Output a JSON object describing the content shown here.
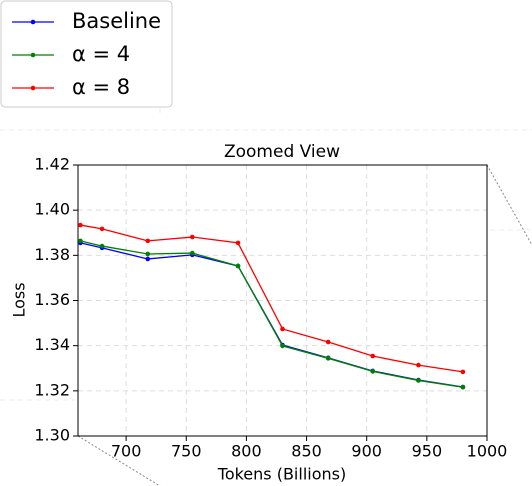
{
  "chart_data": {
    "type": "line",
    "title": "Zoomed View",
    "x_label": "Tokens (Billions)",
    "y_label": "Loss",
    "x": [
      662,
      680,
      718,
      755,
      793,
      830,
      868,
      905,
      943,
      980
    ],
    "series": [
      {
        "name": "Baseline",
        "color": "#0000ff",
        "values": [
          1.3855,
          1.3833,
          1.3784,
          1.3802,
          1.3753,
          1.3403,
          1.3346,
          1.3288,
          1.3248,
          1.3217
        ]
      },
      {
        "name": "α = 4",
        "color": "#008000",
        "values": [
          1.3864,
          1.3841,
          1.3806,
          1.381,
          1.3753,
          1.3399,
          1.3344,
          1.3286,
          1.3246,
          1.3216
        ]
      },
      {
        "name": "α = 8",
        "color": "#ff0000",
        "values": [
          1.3934,
          1.3917,
          1.3864,
          1.3881,
          1.3855,
          1.3474,
          1.3416,
          1.3354,
          1.3314,
          1.3284
        ]
      }
    ],
    "xlim": [
      660,
      1000
    ],
    "ylim": [
      1.3,
      1.42
    ],
    "xticks": [
      700,
      750,
      800,
      850,
      900,
      950,
      1000
    ],
    "yticks": [
      {
        "value": 1.3,
        "label": "1.30"
      },
      {
        "value": 1.32,
        "label": "1.32"
      },
      {
        "value": 1.34,
        "label": "1.34"
      },
      {
        "value": 1.36,
        "label": "1.36"
      },
      {
        "value": 1.38,
        "label": "1.38"
      },
      {
        "value": 1.4,
        "label": "1.40"
      },
      {
        "value": 1.42,
        "label": "1.42"
      }
    ],
    "grid": true,
    "legend": "upper left"
  }
}
